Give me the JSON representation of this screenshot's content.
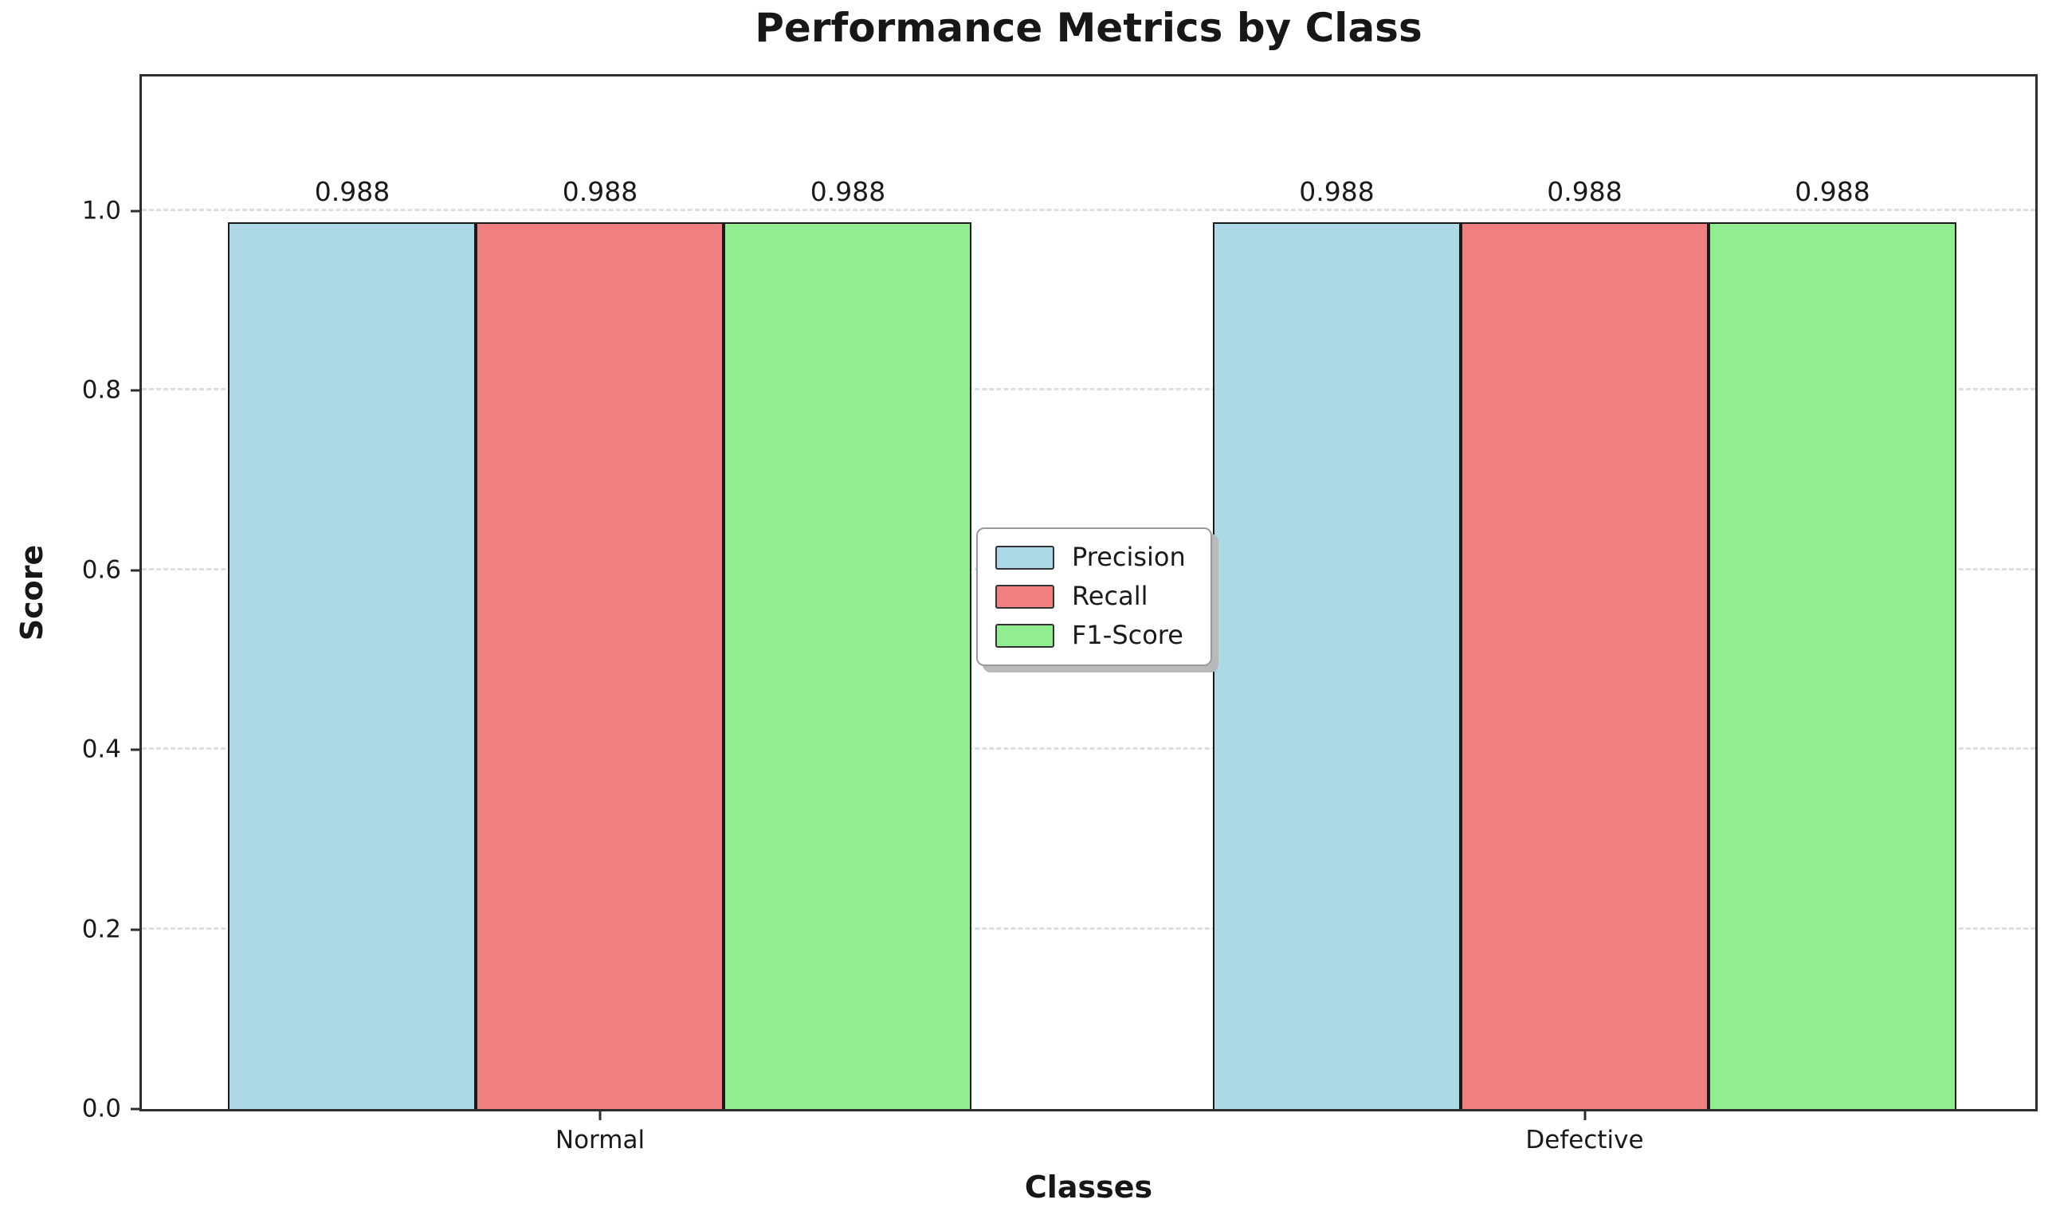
{
  "chart_data": {
    "type": "bar",
    "title": "Performance Metrics by Class",
    "xlabel": "Classes",
    "ylabel": "Score",
    "categories": [
      "Normal",
      "Defective"
    ],
    "series": [
      {
        "name": "Precision",
        "color": "#ADD8E6",
        "values": [
          0.988,
          0.988
        ],
        "labels": [
          "0.988",
          "0.988"
        ]
      },
      {
        "name": "Recall",
        "color": "#F08080",
        "values": [
          0.988,
          0.988
        ],
        "labels": [
          "0.988",
          "0.988"
        ]
      },
      {
        "name": "F1-Score",
        "color": "#90EE90",
        "values": [
          0.988,
          0.988
        ],
        "labels": [
          "0.988",
          "0.988"
        ]
      }
    ],
    "ylim": [
      0,
      1.15
    ],
    "yticks": [
      {
        "value": 0.0,
        "label": "0.0"
      },
      {
        "value": 0.2,
        "label": "0.2"
      },
      {
        "value": 0.4,
        "label": "0.4"
      },
      {
        "value": 0.6,
        "label": "0.6"
      },
      {
        "value": 0.8,
        "label": "0.8"
      },
      {
        "value": 1.0,
        "label": "1.0"
      }
    ],
    "grid": {
      "axis": "y",
      "style": "dashed"
    },
    "legend": {
      "position": "center",
      "entries": [
        "Precision",
        "Recall",
        "F1-Score"
      ]
    }
  },
  "styles": {
    "background": "#ffffff",
    "bar_edge": "#1a1a1a",
    "spine": "#2e2e2e",
    "grid_color": "#dedede",
    "text_color": "#1a1a1a",
    "legend_border": "#9a9a9a",
    "legend_shadow": "#b9b9b9"
  }
}
